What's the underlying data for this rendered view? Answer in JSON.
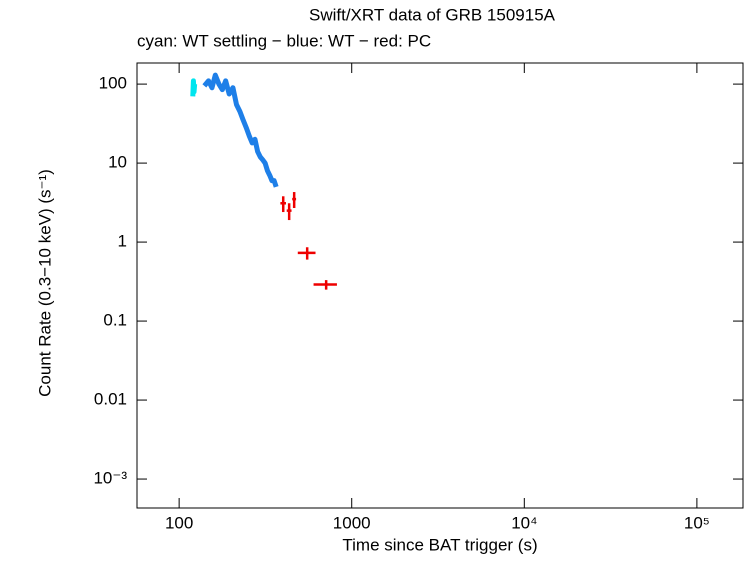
{
  "chart_data": {
    "type": "scatter",
    "title": "Swift/XRT data of GRB 150915A",
    "subtitle": "cyan: WT settling − blue: WT − red: PC",
    "x_label": "Time since BAT trigger (s)",
    "y_label": "Count Rate (0.3−10 keV) (s⁻¹)",
    "x_log": true,
    "y_log": true,
    "xlim": [
      57,
      185000
    ],
    "ylim": [
      0.00043,
      185
    ],
    "xticks": [
      100,
      1000,
      {
        "value": 10000,
        "label": "10⁴"
      },
      {
        "value": 100000,
        "label": "10⁵"
      }
    ],
    "yticks": [
      {
        "value": 0.001,
        "label": "10⁻³"
      },
      0.01,
      0.1,
      1,
      10,
      100
    ],
    "series": [
      {
        "name": "WT settling",
        "color": "#00e5ee",
        "style": "band",
        "x": [
          120,
          121,
          122,
          123
        ],
        "values": [
          70,
          110,
          80,
          100
        ]
      },
      {
        "name": "WT",
        "color": "#1e7fe8",
        "style": "band",
        "x": [
          140,
          148,
          155,
          162,
          170,
          178,
          186,
          195,
          205,
          215,
          225,
          235,
          245,
          255,
          265,
          275,
          285,
          295,
          305,
          315,
          325,
          335,
          345,
          355,
          365
        ],
        "values": [
          95,
          110,
          90,
          130,
          100,
          85,
          110,
          75,
          90,
          55,
          45,
          35,
          28,
          22,
          18,
          20,
          14,
          12,
          11,
          10,
          8,
          7,
          6,
          6,
          5
        ]
      },
      {
        "name": "PC",
        "color": "#ee0000",
        "style": "cross",
        "x": [
          401,
          434,
          464,
          552,
          711
        ],
        "xerr": [
          15,
          14,
          12,
          65,
          110
        ],
        "values": [
          3.1,
          2.5,
          3.5,
          0.73,
          0.29
        ],
        "yerr": [
          0.7,
          0.6,
          0.8,
          0.13,
          0.04
        ]
      }
    ]
  }
}
